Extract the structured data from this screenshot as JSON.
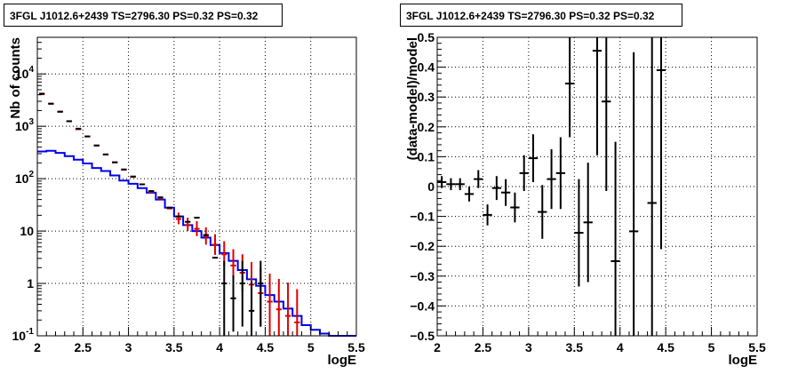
{
  "chart_data": [
    {
      "type": "histogram",
      "title": "3FGL J1012.6+2439 TS=2796.30 PS=0.32 PS=0.32",
      "xlabel": "logE",
      "ylabel": "Nb of counts",
      "xlim": [
        2,
        5.5
      ],
      "ylim": [
        0.1,
        50000
      ],
      "yscale": "log",
      "grid": true,
      "x_ticks": [
        "2",
        "2.5",
        "3",
        "3.5",
        "4",
        "4.5",
        "5",
        "5.5"
      ],
      "y_ticks": [
        "10^-1",
        "1",
        "10",
        "10^2",
        "10^3",
        "10^4"
      ],
      "bin_width": 0.1,
      "series": [
        {
          "color": "#000000",
          "x": [
            2.05,
            2.15,
            2.25,
            2.35,
            2.45,
            2.55,
            2.65,
            2.75,
            2.85,
            2.95,
            3.05,
            3.15,
            3.25,
            3.35,
            3.45,
            3.55,
            3.65,
            3.75,
            3.85,
            3.95,
            4.05,
            4.15,
            4.25,
            4.35,
            4.45
          ],
          "y": [
            4200,
            2700,
            1900,
            1250,
            900,
            640,
            430,
            290,
            205,
            150,
            110,
            78,
            58,
            44,
            28,
            19,
            15,
            18,
            8.4,
            3.1,
            1.0,
            0.52,
            1.0,
            0.3,
            1.0
          ],
          "err_low": [
            null,
            null,
            null,
            null,
            null,
            null,
            null,
            null,
            null,
            null,
            null,
            null,
            null,
            null,
            null,
            null,
            null,
            null,
            null,
            null,
            0.95,
            0.4,
            0.85,
            0.25,
            0.85
          ],
          "err_high": [
            null,
            null,
            null,
            null,
            null,
            null,
            null,
            null,
            null,
            null,
            null,
            null,
            null,
            null,
            null,
            null,
            null,
            null,
            null,
            null,
            1.7,
            0.9,
            1.7,
            0.8,
            1.7
          ]
        },
        {
          "color": "#dd0000",
          "x": [
            2.05,
            2.15,
            2.25,
            2.35,
            2.45,
            2.55,
            2.65,
            2.75,
            2.85,
            2.95,
            3.05,
            3.15,
            3.25,
            3.35,
            3.45,
            3.55,
            3.65,
            3.75,
            3.85,
            3.95,
            4.05,
            4.15,
            4.25,
            4.35,
            4.45,
            4.55,
            4.65,
            4.75,
            4.85
          ],
          "y": [
            4100,
            2700,
            1900,
            1250,
            880,
            640,
            430,
            290,
            205,
            148,
            108,
            78,
            56,
            42,
            27,
            17,
            13,
            11,
            8,
            5.5,
            3.6,
            2.2,
            1.6,
            0.95,
            0.65,
            0.45,
            0.32,
            0.24,
            0.18
          ],
          "err_low": [
            null,
            null,
            null,
            null,
            null,
            null,
            null,
            null,
            null,
            null,
            null,
            null,
            null,
            null,
            null,
            3.5,
            3.0,
            3.0,
            2.5,
            2.0,
            1.5,
            1.0,
            0.9,
            0.7,
            0.5,
            0.4,
            0.3,
            0.22,
            0.16
          ],
          "err_high": [
            null,
            null,
            null,
            null,
            null,
            null,
            null,
            null,
            null,
            null,
            null,
            null,
            null,
            null,
            null,
            5.5,
            5.0,
            4.5,
            3.8,
            3.2,
            2.8,
            2.3,
            2.0,
            1.6,
            1.3,
            1.1,
            0.9,
            0.8,
            0.6
          ]
        },
        {
          "color": "#0000ee",
          "x_edges": [
            2.0,
            2.1,
            2.2,
            2.3,
            2.4,
            2.5,
            2.6,
            2.7,
            2.8,
            2.9,
            3.0,
            3.1,
            3.2,
            3.3,
            3.4,
            3.5,
            3.6,
            3.7,
            3.8,
            3.9,
            4.0,
            4.1,
            4.2,
            4.3,
            4.4,
            4.5,
            4.6,
            4.7,
            4.8,
            4.9,
            5.0,
            5.1,
            5.2,
            5.3,
            5.4,
            5.5
          ],
          "y": [
            330,
            340,
            310,
            270,
            230,
            195,
            160,
            140,
            115,
            92,
            80,
            66,
            54,
            40,
            28,
            19,
            13,
            10,
            7.5,
            5.4,
            3.8,
            2.7,
            1.8,
            1.2,
            0.9,
            0.6,
            0.45,
            0.33,
            0.24,
            0.16,
            0.13,
            0.11,
            0.1,
            0.1,
            0.1
          ]
        }
      ]
    },
    {
      "type": "scatter",
      "title": "3FGL J1012.6+2439 TS=2796.30 PS=0.32 PS=0.32",
      "xlabel": "logE",
      "ylabel": "(data-model)/model",
      "xlim": [
        2,
        5.5
      ],
      "ylim": [
        -0.5,
        0.5
      ],
      "grid": true,
      "x_ticks": [
        "2",
        "2.5",
        "3",
        "3.5",
        "4",
        "4.5",
        "5",
        "5.5"
      ],
      "y_ticks": [
        "−0.5",
        "−0.4",
        "−0.3",
        "−0.2",
        "−0.1",
        "0",
        "0.1",
        "0.2",
        "0.3",
        "0.4",
        "0.5"
      ],
      "series": [
        {
          "color": "#000000",
          "x": [
            2.05,
            2.15,
            2.25,
            2.35,
            2.45,
            2.55,
            2.65,
            2.75,
            2.85,
            2.95,
            3.05,
            3.15,
            3.25,
            3.35,
            3.45,
            3.55,
            3.65,
            3.75,
            3.85,
            3.95,
            4.15,
            4.35,
            4.45
          ],
          "y": [
            0.015,
            0.008,
            0.008,
            -0.025,
            0.025,
            -0.095,
            -0.005,
            -0.02,
            -0.07,
            0.045,
            0.095,
            -0.085,
            0.025,
            0.045,
            0.345,
            -0.155,
            -0.12,
            0.455,
            0.285,
            -0.25,
            -0.15,
            -0.055,
            0.39
          ],
          "err": [
            0.02,
            0.02,
            0.02,
            0.025,
            0.03,
            0.035,
            0.04,
            0.045,
            0.05,
            0.06,
            0.08,
            0.09,
            0.1,
            0.12,
            0.18,
            0.18,
            0.2,
            0.35,
            0.3,
            0.4,
            0.6,
            0.6,
            0.6
          ]
        }
      ]
    }
  ]
}
